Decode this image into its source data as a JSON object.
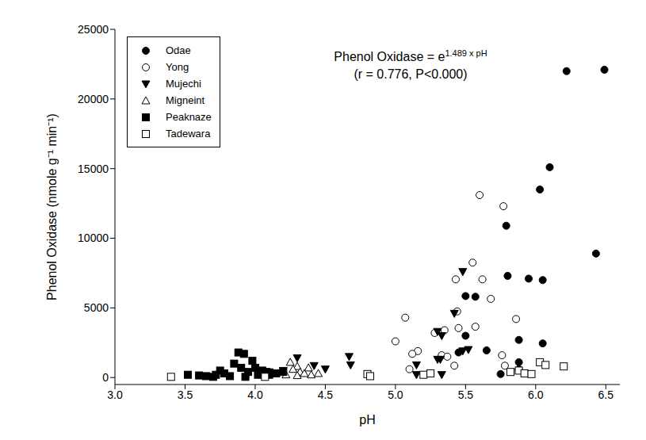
{
  "chart_data": {
    "type": "scatter",
    "x_label": "pH",
    "y_label": "Phenol Oxidase (nmole g⁻¹ min⁻¹)",
    "annotation": {
      "equation": "Phenol Oxidase = e",
      "exponent": "1.489 x pH",
      "stats": "(r = 0.776, P<0.000)"
    },
    "xlim": [
      3.0,
      6.6
    ],
    "xticks": [
      {
        "value": 3.0,
        "label": "3.0"
      },
      {
        "value": 3.5,
        "label": "3.5"
      },
      {
        "value": 4.0,
        "label": "4.0"
      },
      {
        "value": 4.5,
        "label": "4.5"
      },
      {
        "value": 5.0,
        "label": "5.0"
      },
      {
        "value": 5.5,
        "label": "5.5"
      },
      {
        "value": 6.0,
        "label": "6.0"
      },
      {
        "value": 6.5,
        "label": "6.5"
      }
    ],
    "ylim": [
      -500,
      25000
    ],
    "yticks": [
      0,
      5000,
      10000,
      15000,
      20000,
      25000
    ],
    "grid": false,
    "legend": "top-left",
    "series": [
      {
        "name": "Odae",
        "marker": "circle",
        "color": "#000000",
        "x": [
          6.22,
          6.49,
          6.1,
          6.03,
          5.79,
          6.43,
          5.8,
          5.95,
          6.05,
          5.5,
          5.57,
          5.5,
          5.65,
          5.88,
          6.05,
          5.45,
          5.88,
          5.88,
          5.75
        ],
        "values": [
          22000,
          22100,
          15100,
          13500,
          10900,
          8900,
          7300,
          7100,
          7000,
          5850,
          5800,
          3000,
          1950,
          2700,
          2450,
          1800,
          1100,
          600,
          250
        ]
      },
      {
        "name": "Yong",
        "marker": "circle_open",
        "color": "#000000",
        "x": [
          5.6,
          5.77,
          5.55,
          5.62,
          5.43,
          5.68,
          5.44,
          5.07,
          5.86,
          5.57,
          5.45,
          5.35,
          5.28,
          5.0,
          5.16,
          5.12,
          5.33,
          5.37,
          5.42,
          5.76,
          5.78,
          5.1
        ],
        "values": [
          13100,
          12300,
          8250,
          7050,
          7050,
          5650,
          4750,
          4300,
          4200,
          3650,
          3550,
          3400,
          3200,
          2600,
          1900,
          1700,
          1600,
          1500,
          850,
          1600,
          850,
          600
        ]
      },
      {
        "name": "Mujechi",
        "marker": "triangle_down",
        "color": "#000000",
        "x": [
          5.48,
          5.42,
          5.3,
          5.33,
          5.52,
          5.48,
          5.3,
          5.32,
          5.15,
          5.15,
          5.33,
          4.67,
          4.68,
          4.5,
          4.3,
          4.42,
          4.2,
          4.1,
          3.95
        ],
        "values": [
          7600,
          4600,
          3300,
          3000,
          2000,
          1900,
          1300,
          1300,
          900,
          200,
          200,
          1500,
          900,
          600,
          1400,
          850,
          500,
          400,
          300
        ]
      },
      {
        "name": "Migneint",
        "marker": "triangle_open",
        "color": "#000000",
        "x": [
          4.25,
          4.3,
          4.27,
          4.32,
          4.35,
          4.38,
          4.4,
          4.22,
          4.45,
          4.3,
          4.05
        ],
        "values": [
          1100,
          800,
          600,
          400,
          300,
          700,
          200,
          200,
          300,
          150,
          200
        ]
      },
      {
        "name": "Peaknaze",
        "marker": "square",
        "color": "#000000",
        "x": [
          3.52,
          3.6,
          3.65,
          3.72,
          3.75,
          3.78,
          3.82,
          3.85,
          3.88,
          3.9,
          3.92,
          3.95,
          3.98,
          4.0,
          4.02,
          4.05,
          4.08,
          4.1,
          4.15,
          4.2,
          3.7,
          3.93
        ],
        "values": [
          200,
          150,
          100,
          200,
          500,
          300,
          100,
          1000,
          1800,
          700,
          1700,
          400,
          1200,
          700,
          200,
          500,
          400,
          200,
          300,
          400,
          50,
          50
        ]
      },
      {
        "name": "Tadewara",
        "marker": "square_open",
        "color": "#000000",
        "x": [
          3.4,
          4.07,
          4.8,
          4.82,
          5.2,
          5.25,
          5.82,
          5.88,
          5.92,
          6.03,
          6.07,
          6.2,
          5.97
        ],
        "values": [
          50,
          50,
          250,
          100,
          200,
          300,
          400,
          500,
          300,
          1100,
          900,
          800,
          250
        ]
      }
    ]
  }
}
